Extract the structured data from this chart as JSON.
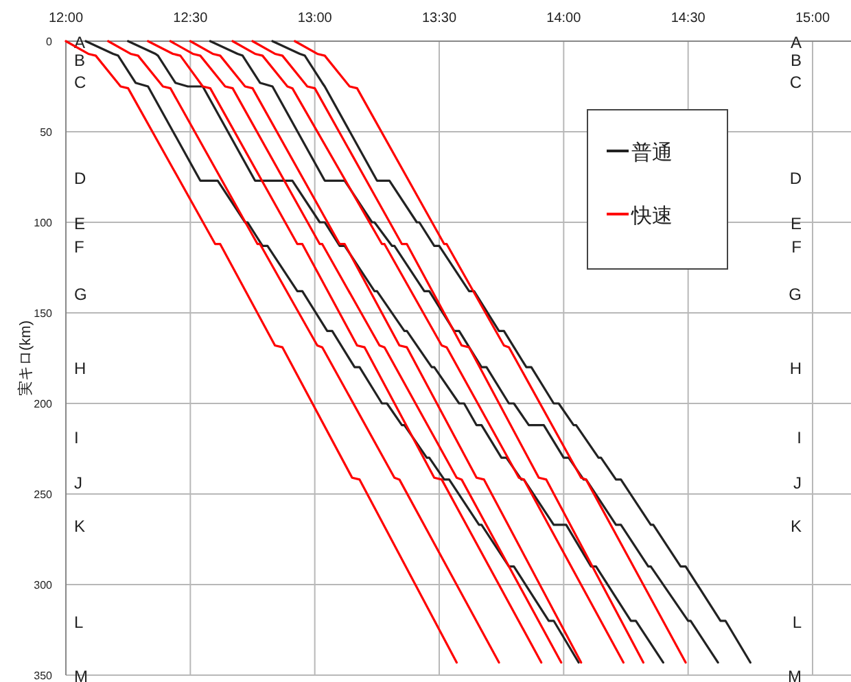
{
  "chart_data": {
    "type": "line",
    "ylabel": "実キロ(km)",
    "xlim": [
      12,
      15
    ],
    "xticks": [
      {
        "value": 12,
        "label": "12:00"
      },
      {
        "value": 12.5,
        "label": "12:30"
      },
      {
        "value": 13,
        "label": "13:00"
      },
      {
        "value": 13.5,
        "label": "13:30"
      },
      {
        "value": 14,
        "label": "14:00"
      },
      {
        "value": 14.5,
        "label": "14:30"
      },
      {
        "value": 15,
        "label": "15:00"
      }
    ],
    "ylim": [
      350,
      0
    ],
    "yticks": [
      0,
      50,
      100,
      150,
      200,
      250,
      300,
      350
    ],
    "grid": true,
    "legend": "right",
    "marker": "none",
    "line_style": "solid",
    "annotations": [
      "A",
      "B",
      "C",
      "D",
      "E",
      "F",
      "G",
      "H",
      "I",
      "J",
      "K",
      "L",
      "M",
      "A",
      "B",
      "C",
      "D",
      "E",
      "F",
      "G",
      "H",
      "I",
      "J",
      "K",
      "L",
      "M"
    ],
    "series": [
      {
        "name": "普通",
        "color": "#222222",
        "x": [
          12.08,
          12.19,
          12.21,
          12.28,
          12.33,
          12.54,
          12.61,
          12.72,
          12.73,
          12.79,
          12.81,
          12.93,
          12.95,
          13.05,
          13.07,
          13.16,
          13.18,
          13.27,
          13.29,
          13.35,
          13.36,
          13.45,
          13.46,
          13.52,
          13.54,
          13.66,
          13.67,
          13.78,
          13.8,
          13.94,
          13.96,
          14.06
        ],
        "values": [
          0,
          7,
          8,
          23,
          25,
          77,
          77,
          100,
          100,
          113,
          113,
          138,
          138,
          160,
          160,
          180,
          180,
          200,
          200,
          212,
          212,
          230,
          230,
          242,
          242,
          267,
          267,
          290,
          290,
          320,
          320,
          343
        ]
      },
      {
        "color": "#222222",
        "x": [
          12.25,
          12.36,
          12.37,
          12.44,
          12.49,
          12.55,
          12.76,
          12.91,
          13.02,
          13.04,
          13.1,
          13.12,
          13.24,
          13.25,
          13.36,
          13.37,
          13.47,
          13.48,
          13.58,
          13.6,
          13.65,
          13.67,
          13.75,
          13.77,
          13.83,
          13.84,
          13.96,
          14.01,
          14.11,
          14.13,
          14.27,
          14.29,
          14.4
        ],
        "values": [
          0,
          7,
          8,
          23,
          25,
          25,
          77,
          77,
          100,
          100,
          113,
          113,
          138,
          138,
          160,
          160,
          180,
          180,
          200,
          200,
          212,
          212,
          230,
          230,
          242,
          242,
          267,
          267,
          290,
          290,
          320,
          320,
          343
        ]
      },
      {
        "color": "#222222",
        "x": [
          12.58,
          12.69,
          12.71,
          12.78,
          12.83,
          13.04,
          13.12,
          13.23,
          13.24,
          13.31,
          13.32,
          13.44,
          13.46,
          13.56,
          13.58,
          13.67,
          13.69,
          13.78,
          13.8,
          13.86,
          13.92,
          14.0,
          14.02,
          14.08,
          14.09,
          14.21,
          14.23,
          14.34,
          14.35,
          14.5,
          14.51,
          14.62
        ],
        "values": [
          0,
          7,
          8,
          23,
          25,
          77,
          77,
          100,
          100,
          113,
          113,
          138,
          138,
          160,
          160,
          180,
          180,
          200,
          200,
          212,
          212,
          230,
          230,
          242,
          242,
          267,
          267,
          290,
          290,
          320,
          320,
          343
        ]
      },
      {
        "color": "#222222",
        "x": [
          12.83,
          12.94,
          12.96,
          13.03,
          13.04,
          13.25,
          13.3,
          13.41,
          13.42,
          13.48,
          13.5,
          13.62,
          13.64,
          13.74,
          13.76,
          13.85,
          13.87,
          13.96,
          13.98,
          14.04,
          14.05,
          14.14,
          14.15,
          14.21,
          14.23,
          14.35,
          14.36,
          14.47,
          14.49,
          14.63,
          14.65,
          14.75
        ],
        "values": [
          0,
          7,
          8,
          23,
          25,
          77,
          77,
          100,
          100,
          113,
          113,
          138,
          138,
          160,
          160,
          180,
          180,
          200,
          200,
          212,
          212,
          230,
          230,
          242,
          242,
          267,
          267,
          290,
          290,
          320,
          320,
          343
        ]
      },
      {
        "name": "快速",
        "color": "#ff0000",
        "x": [
          12.0,
          12.09,
          12.12,
          12.22,
          12.25,
          12.6,
          12.62,
          12.84,
          12.87,
          13.15,
          13.18,
          13.57
        ],
        "values": [
          0,
          7,
          8,
          25,
          26,
          112,
          112,
          168,
          169,
          241,
          242,
          343
        ]
      },
      {
        "color": "#ff0000",
        "x": [
          12.17,
          12.26,
          12.29,
          12.39,
          12.42,
          12.77,
          12.78,
          13.01,
          13.03,
          13.32,
          13.34,
          13.74
        ],
        "values": [
          0,
          7,
          8,
          25,
          26,
          112,
          112,
          168,
          169,
          241,
          242,
          343
        ]
      },
      {
        "color": "#ff0000",
        "x": [
          12.33,
          12.43,
          12.46,
          12.55,
          12.58,
          12.93,
          12.95,
          13.17,
          13.2,
          13.48,
          13.51,
          13.91
        ],
        "values": [
          0,
          7,
          8,
          25,
          26,
          112,
          112,
          168,
          169,
          241,
          242,
          343
        ]
      },
      {
        "color": "#ff0000",
        "x": [
          12.42,
          12.51,
          12.54,
          12.64,
          12.67,
          13.02,
          13.03,
          13.26,
          13.28,
          13.57,
          13.59,
          13.99
        ],
        "values": [
          0,
          7,
          8,
          25,
          26,
          112,
          112,
          168,
          169,
          241,
          242,
          343
        ]
      },
      {
        "color": "#ff0000",
        "x": [
          12.5,
          12.59,
          12.62,
          12.72,
          12.75,
          13.1,
          13.12,
          13.34,
          13.37,
          13.65,
          13.68,
          14.07
        ],
        "values": [
          0,
          7,
          8,
          25,
          26,
          112,
          112,
          168,
          169,
          241,
          242,
          343
        ]
      },
      {
        "color": "#ff0000",
        "x": [
          12.67,
          12.76,
          12.79,
          12.89,
          12.91,
          13.27,
          13.28,
          13.51,
          13.53,
          13.82,
          13.84,
          14.24
        ],
        "values": [
          0,
          7,
          8,
          25,
          26,
          112,
          112,
          168,
          169,
          241,
          242,
          343
        ]
      },
      {
        "color": "#ff0000",
        "x": [
          12.75,
          12.84,
          12.87,
          12.97,
          13.0,
          13.35,
          13.37,
          13.59,
          13.62,
          13.9,
          13.93,
          14.32
        ],
        "values": [
          0,
          7,
          8,
          25,
          26,
          112,
          112,
          168,
          169,
          241,
          242,
          343
        ]
      },
      {
        "color": "#ff0000",
        "x": [
          12.92,
          13.01,
          13.04,
          13.14,
          13.17,
          13.52,
          13.53,
          13.76,
          13.78,
          14.07,
          14.09,
          14.49
        ],
        "values": [
          0,
          7,
          8,
          25,
          26,
          112,
          112,
          168,
          169,
          241,
          242,
          343
        ]
      }
    ]
  }
}
